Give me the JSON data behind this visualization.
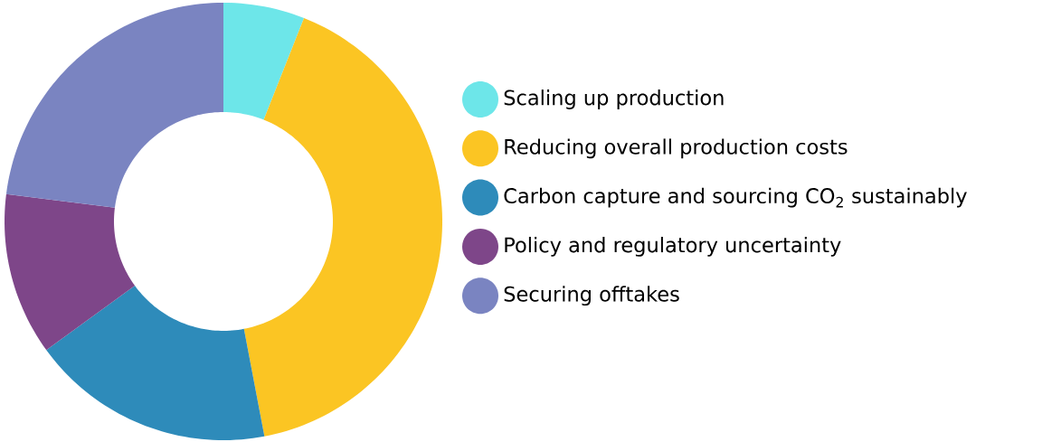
{
  "chart_data": {
    "type": "donut",
    "categories": [
      "Scaling up production",
      "Reducing overall production costs",
      "Carbon capture and sourcing CO$_{2}$ sustainably",
      "Policy and regulatory uncertainty",
      "Securing offtakes"
    ],
    "values": [
      6,
      41,
      18,
      12,
      23
    ],
    "colors": [
      "#6de6e9",
      "#fbc523",
      "#2e8bba",
      "#7e4689",
      "#7a84c1"
    ],
    "legend": "right"
  }
}
